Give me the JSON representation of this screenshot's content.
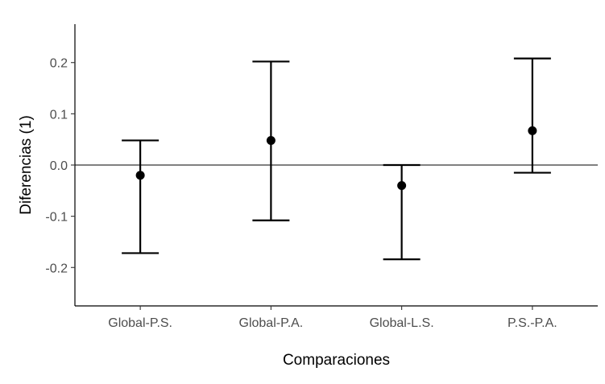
{
  "chart_data": {
    "type": "errorbar",
    "title": "",
    "xlabel": "Comparaciones",
    "ylabel": "Diferencias (1)",
    "ylim": [
      -0.275,
      0.275
    ],
    "yticks": [
      -0.2,
      -0.1,
      0.0,
      0.1,
      0.2
    ],
    "ytick_labels": [
      "-0.2",
      "-0.1",
      "0.0",
      "0.1",
      "0.2"
    ],
    "categories": [
      "Global-P.S.",
      "Global-P.A.",
      "Global-L.S.",
      "P.S.-P.A."
    ],
    "estimate": [
      -0.02,
      0.048,
      -0.04,
      0.067
    ],
    "lower": [
      -0.172,
      -0.108,
      -0.184,
      -0.015
    ],
    "upper": [
      0.048,
      0.202,
      0.0,
      0.208
    ],
    "reference_line": 0.0,
    "grid": false,
    "colors": {
      "marks": "#000000",
      "tick_labels": "#4d4d4d"
    }
  }
}
